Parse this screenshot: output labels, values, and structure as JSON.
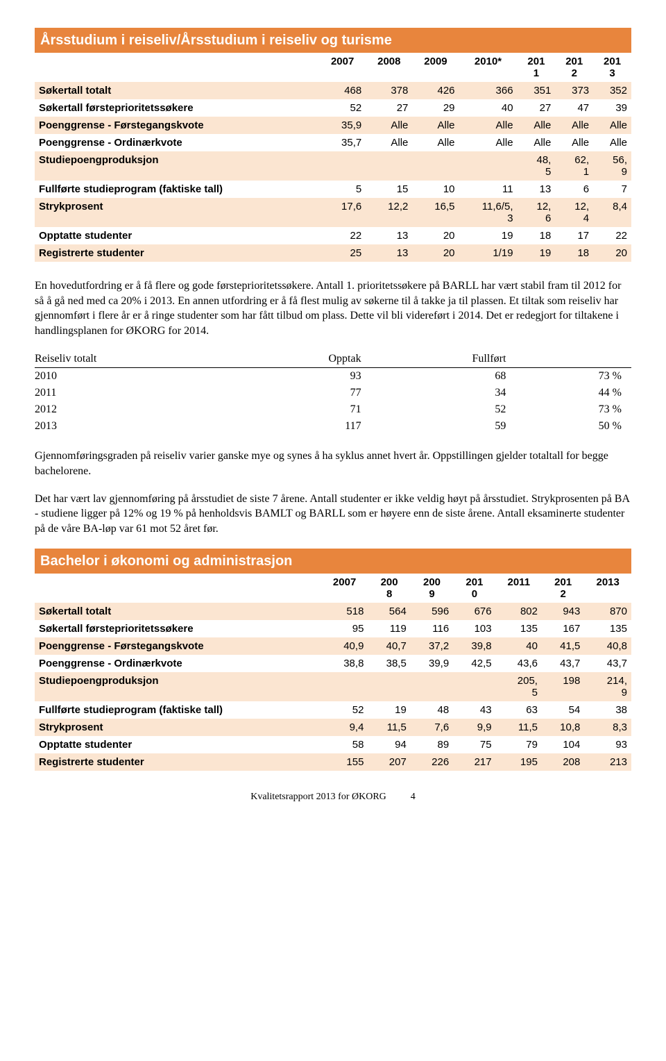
{
  "table1": {
    "title": "Årsstudium i reiseliv/Årsstudium i reiseliv og turisme",
    "colHeaders": [
      "",
      "2007",
      "2008",
      "2009",
      "2010*",
      "201\n1",
      "201\n2",
      "201\n3"
    ],
    "rows": [
      {
        "label": "Søkertall totalt",
        "cells": [
          "468",
          "378",
          "426",
          "366",
          "351",
          "373",
          "352"
        ],
        "stripe": true
      },
      {
        "label": "Søkertall førsteprioritetssøkere",
        "cells": [
          "52",
          "27",
          "29",
          "40",
          "27",
          "47",
          "39"
        ],
        "stripe": false
      },
      {
        "label": "Poenggrense - Førstegangskvote",
        "cells": [
          "35,9",
          "Alle",
          "Alle",
          "Alle",
          "Alle",
          "Alle",
          "Alle"
        ],
        "stripe": true
      },
      {
        "label": "Poenggrense - Ordinærkvote",
        "cells": [
          "35,7",
          "Alle",
          "Alle",
          "Alle",
          "Alle",
          "Alle",
          "Alle"
        ],
        "stripe": false
      },
      {
        "label": "Studiepoengproduksjon",
        "cells": [
          "",
          "",
          "",
          "",
          "48,\n5",
          "62,\n1",
          "56,\n9"
        ],
        "stripe": true
      },
      {
        "label": "Fullførte studieprogram (faktiske tall)",
        "cells": [
          "5",
          "15",
          "10",
          "11",
          "13",
          "6",
          "7"
        ],
        "stripe": false
      },
      {
        "label": "Strykprosent",
        "cells": [
          "17,6",
          "12,2",
          "16,5",
          "11,6/5,\n3",
          "12,\n6",
          "12,\n4",
          "8,4"
        ],
        "stripe": true
      },
      {
        "label": "Opptatte studenter",
        "cells": [
          "22",
          "13",
          "20",
          "19",
          "18",
          "17",
          "22"
        ],
        "stripe": false
      },
      {
        "label": "Registrerte studenter",
        "cells": [
          "25",
          "13",
          "20",
          "1/19",
          "19",
          "18",
          "20"
        ],
        "stripe": true
      }
    ]
  },
  "para1": "En hovedutfordring er å få flere og gode førsteprioritetssøkere. Antall 1. prioritetssøkere på  BARLL  har vært stabil fram til 2012 for så å gå ned med ca 20% i 2013. En annen utfordring er å få flest mulig av søkerne til å takke ja til plassen. Et tiltak som reiseliv har gjennomført i flere år er å ringe studenter som har fått tilbud om plass. Dette vil bli videreført i 2014.  Det er redegjort for tiltakene i handlingsplanen for ØKORG for 2014.",
  "smallTable": {
    "headers": [
      "Reiseliv totalt",
      "Opptak",
      "Fullført",
      ""
    ],
    "rows": [
      [
        "2010",
        "93",
        "68",
        "73 %"
      ],
      [
        "2011",
        "77",
        "34",
        "44 %"
      ],
      [
        "2012",
        "71",
        "52",
        "73 %"
      ],
      [
        "2013",
        "117",
        "59",
        "50 %"
      ]
    ]
  },
  "para2": "Gjennomføringsgraden på reiseliv varier ganske mye og synes å ha syklus annet hvert år. Oppstillingen gjelder totaltall for begge bachelorene.",
  "para3": "Det har vært lav gjennomføring på årsstudiet de siste 7 årene.  Antall studenter er ikke veldig høyt på årsstudiet. Strykprosenten på BA - studiene ligger på 12% og 19 % på henholdsvis BAMLT og BARLL som er høyere enn de siste årene.  Antall eksaminerte studenter på de våre BA-løp var 61 mot 52 året før.",
  "table2": {
    "title": "Bachelor i økonomi og administrasjon",
    "colHeaders": [
      "",
      "2007",
      "200\n8",
      "200\n9",
      "201\n0",
      "2011",
      "201\n2",
      "2013"
    ],
    "rows": [
      {
        "label": "Søkertall totalt",
        "cells": [
          "518",
          "564",
          "596",
          "676",
          "802",
          "943",
          "870"
        ],
        "stripe": true
      },
      {
        "label": "Søkertall førsteprioritetssøkere",
        "cells": [
          "95",
          "119",
          "116",
          "103",
          "135",
          "167",
          "135"
        ],
        "stripe": false
      },
      {
        "label": "Poenggrense - Førstegangskvote",
        "cells": [
          "40,9",
          "40,7",
          "37,2",
          "39,8",
          "40",
          "41,5",
          "40,8"
        ],
        "stripe": true
      },
      {
        "label": "Poenggrense - Ordinærkvote",
        "cells": [
          "38,8",
          "38,5",
          "39,9",
          "42,5",
          "43,6",
          "43,7",
          "43,7"
        ],
        "stripe": false
      },
      {
        "label": "Studiepoengproduksjon",
        "cells": [
          "",
          "",
          "",
          "",
          "205,\n5",
          "198",
          "214,\n9"
        ],
        "stripe": true
      },
      {
        "label": "Fullførte studieprogram (faktiske tall)",
        "cells": [
          "52",
          "19",
          "48",
          "43",
          "63",
          "54",
          "38"
        ],
        "stripe": false
      },
      {
        "label": "Strykprosent",
        "cells": [
          "9,4",
          "11,5",
          "7,6",
          "9,9",
          "11,5",
          "10,8",
          "8,3"
        ],
        "stripe": true
      },
      {
        "label": "Opptatte studenter",
        "cells": [
          "58",
          "94",
          "89",
          "75",
          "79",
          "104",
          "93"
        ],
        "stripe": false
      },
      {
        "label": "Registrerte studenter",
        "cells": [
          "155",
          "207",
          "226",
          "217",
          "195",
          "208",
          "213"
        ],
        "stripe": true
      }
    ]
  },
  "footer": {
    "text": "Kvalitetsrapport 2013 for ØKORG",
    "page": "4"
  },
  "colors": {
    "headerBg": "#e8853d",
    "stripeBg": "#fbe5d1"
  }
}
